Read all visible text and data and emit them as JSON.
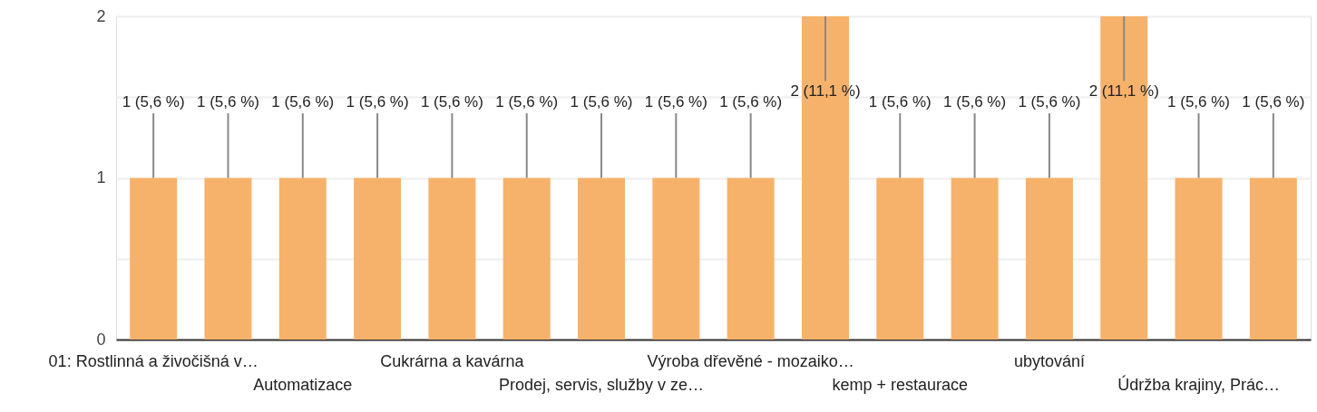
{
  "chart_data": {
    "type": "bar",
    "categories": [
      "01: Rostlinná a živočišná v…",
      null,
      "Automatizace",
      null,
      "Cukrárna a kavárna",
      null,
      "Prodej, servis, služby v ze…",
      null,
      "Výroba dřevěné - mozaiko…",
      null,
      "kemp + restaurace",
      null,
      "ubytování",
      null,
      "Údržba krajiny, Prác…",
      null
    ],
    "values": [
      1,
      1,
      1,
      1,
      1,
      1,
      1,
      1,
      1,
      2,
      1,
      1,
      1,
      2,
      1,
      1
    ],
    "value_labels": [
      "1 (5,6 %)",
      "1 (5,6 %)",
      "1 (5,6 %)",
      "1 (5,6 %)",
      "1 (5,6 %)",
      "1 (5,6 %)",
      "1 (5,6 %)",
      "1 (5,6 %)",
      "1 (5,6 %)",
      "2 (11,1 %)",
      "1 (5,6 %)",
      "1 (5,6 %)",
      "1 (5,6 %)",
      "2 (11,1 %)",
      "1 (5,6 %)",
      "1 (5,6 %)"
    ],
    "color": "#f6b26b",
    "ylim": [
      0,
      2
    ],
    "yticks": [
      0,
      {
        "value": 0.5,
        "label": null
      },
      1,
      {
        "value": 1.5,
        "label": null
      },
      2
    ],
    "grid": "y"
  }
}
